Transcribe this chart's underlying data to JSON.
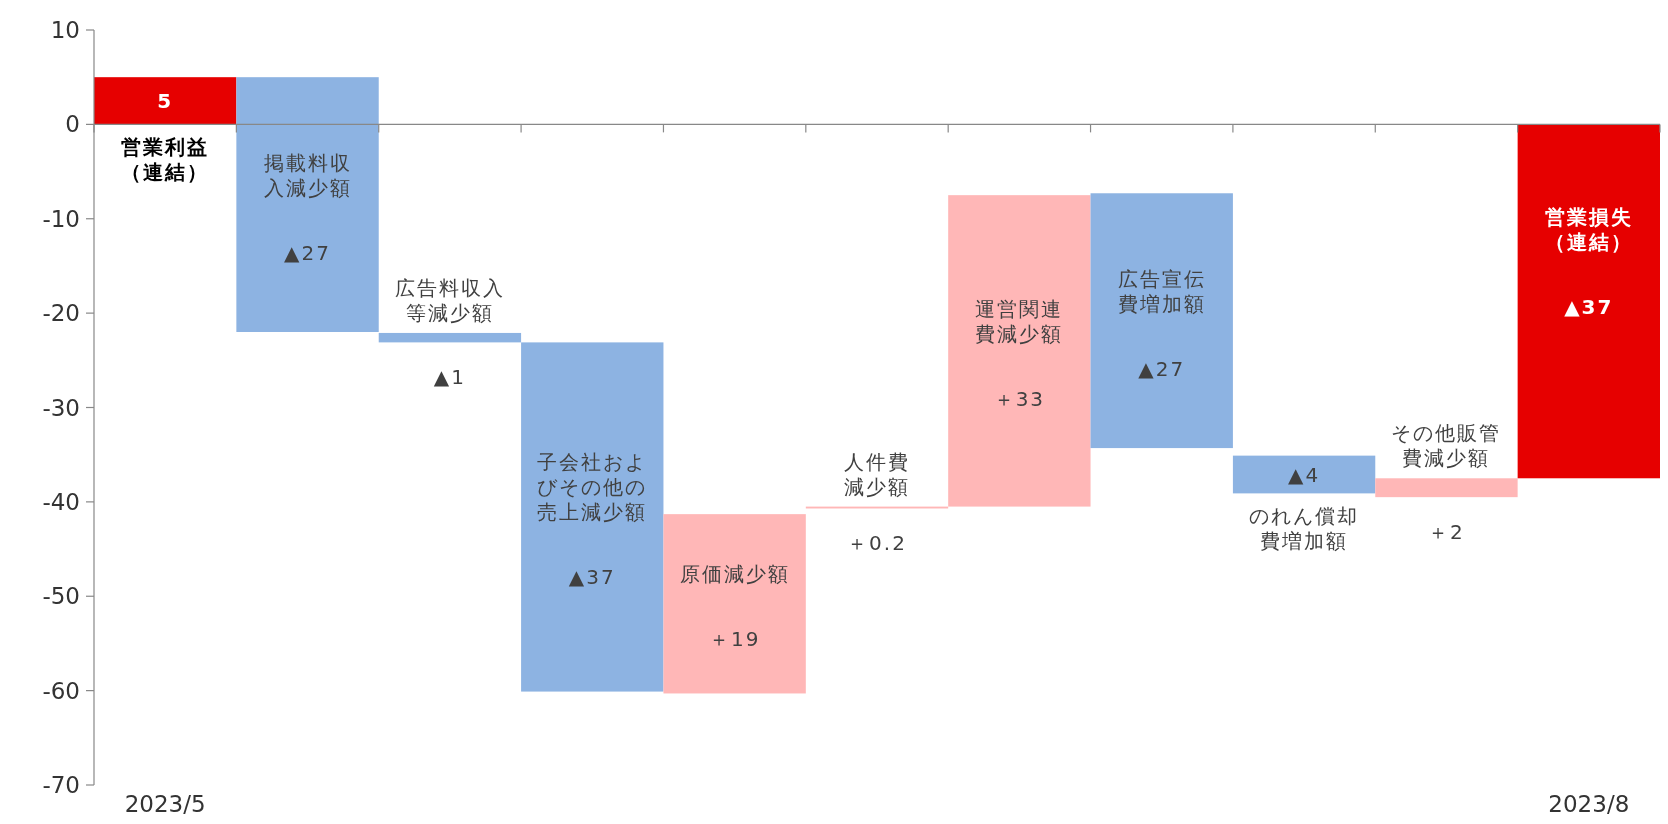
{
  "chart_data": {
    "type": "bar",
    "categories": [
      "営業利益（連結）",
      "掲載料収入減少額",
      "広告料収入等減少額",
      "子会社およびその他の売上減少額",
      "原価減少額",
      "人件費減少額",
      "運営関連費減少額",
      "広告宣伝費増加額",
      "のれん償却費増加額",
      "その他販管費減少額",
      "営業損失（連結）"
    ],
    "values": [
      5,
      -27,
      -1,
      -37,
      19,
      0.2,
      33,
      -27,
      -4,
      2,
      -37.5
    ],
    "base": [
      0,
      5,
      -22.1,
      -23.1,
      -60.3,
      -40.7,
      -40.5,
      -7.3,
      -35.1,
      -39.5,
      0
    ],
    "colors": [
      "#e60000",
      "#8db3e2",
      "#8db3e2",
      "#8db3e2",
      "#ffb7b7",
      "#ffb7b7",
      "#ffb7b7",
      "#8db3e2",
      "#8db3e2",
      "#ffb7b7",
      "#e60000"
    ],
    "value_labels": [
      "5",
      "▲27",
      "▲1",
      "▲37",
      "＋19",
      "＋0.2",
      "＋33",
      "▲27",
      "▲4",
      "＋2",
      "▲37"
    ],
    "ylim": [
      -70,
      10
    ],
    "yticks": [
      10,
      0,
      -10,
      -20,
      -30,
      -40,
      -50,
      -60,
      -70
    ],
    "annotations": [
      "2023/5",
      "2023/8"
    ]
  }
}
